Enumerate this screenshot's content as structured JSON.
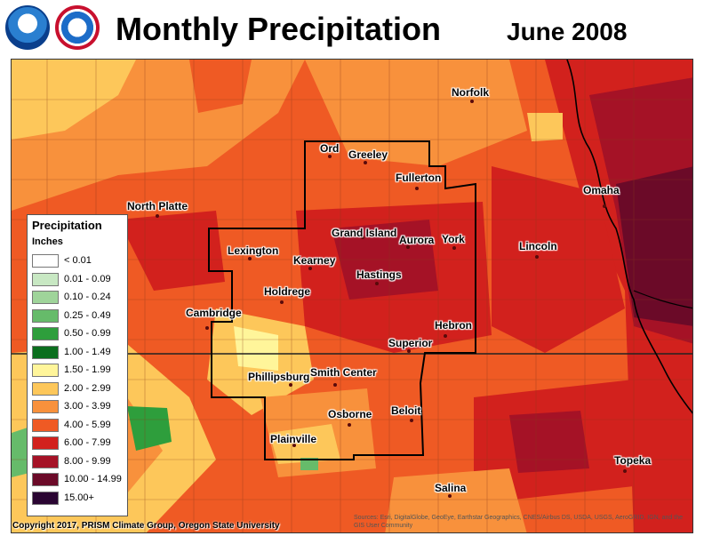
{
  "header": {
    "title": "Monthly Precipitation",
    "date": "June 2008",
    "logos": [
      "noaa-logo",
      "national-weather-service-logo"
    ]
  },
  "legend": {
    "title": "Precipitation",
    "units": "Inches",
    "items": [
      {
        "label": "< 0.01",
        "color": "#ffffff"
      },
      {
        "label": "0.01 - 0.09",
        "color": "#c8e8c3"
      },
      {
        "label": "0.10 - 0.24",
        "color": "#9fd49a"
      },
      {
        "label": "0.25 - 0.49",
        "color": "#66bb6a"
      },
      {
        "label": "0.50 - 0.99",
        "color": "#2e9e3c"
      },
      {
        "label": "1.00 - 1.49",
        "color": "#0b6e1e"
      },
      {
        "label": "1.50 - 1.99",
        "color": "#fff59a"
      },
      {
        "label": "2.00 - 2.99",
        "color": "#fdc75a"
      },
      {
        "label": "3.00 - 3.99",
        "color": "#f8913c"
      },
      {
        "label": "4.00 - 5.99",
        "color": "#ef5a24"
      },
      {
        "label": "6.00 - 7.99",
        "color": "#d2211d"
      },
      {
        "label": "8.00 - 9.99",
        "color": "#a51226"
      },
      {
        "label": "10.00 - 14.99",
        "color": "#6b0a28"
      },
      {
        "label": "15.00+",
        "color": "#2a0532"
      }
    ]
  },
  "cities": {
    "norfolk": "Norfolk",
    "ord": "Ord",
    "greeley": "Greeley",
    "fullerton": "Fullerton",
    "omaha": "Omaha",
    "north_platte": "North Platte",
    "grand_island": "Grand Island",
    "aurora": "Aurora",
    "york": "York",
    "lincoln": "Lincoln",
    "lexington": "Lexington",
    "kearney": "Kearney",
    "hastings": "Hastings",
    "holdrege": "Holdrege",
    "cambridge": "Cambridge",
    "hebron": "Hebron",
    "superior": "Superior",
    "phillipsburg": "Phillipsburg",
    "smith_center": "Smith Center",
    "osborne": "Osborne",
    "beloit": "Beloit",
    "plainville": "Plainville",
    "topeka": "Topeka",
    "salina": "Salina"
  },
  "footer": {
    "copyright": "Copyright 2017, PRISM Climate Group, Oregon State University",
    "sources": "Sources: Esri, DigitalGlobe, GeoEye, Earthstar Geographics, CNES/Airbus DS, USDA, USGS, AeroGRID, IGN, and the GIS User Community"
  }
}
